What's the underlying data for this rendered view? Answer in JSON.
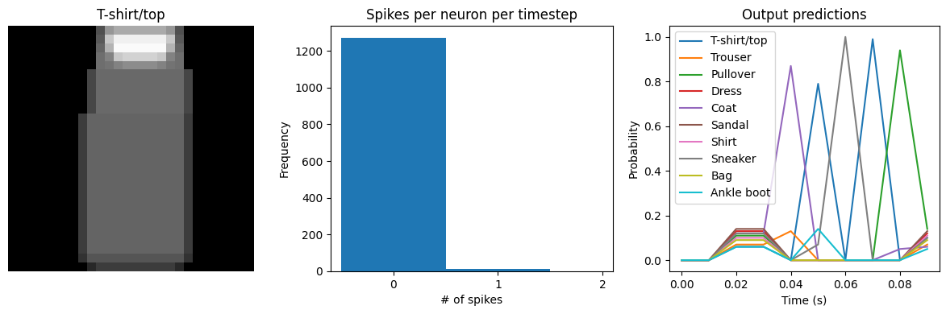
{
  "chart_data": [
    {
      "type": "image",
      "title": "T-shirt/top",
      "tick_labels": false,
      "clim": [
        0,
        255
      ],
      "cells": [
        [
          0,
          0,
          0,
          0,
          0,
          0,
          0,
          0,
          0,
          0,
          80,
          150,
          170,
          170,
          170,
          170,
          170,
          170,
          150,
          80,
          0,
          0,
          0,
          0,
          0,
          0,
          0,
          0
        ],
        [
          0,
          0,
          0,
          0,
          0,
          0,
          0,
          0,
          0,
          0,
          90,
          200,
          240,
          240,
          240,
          240,
          240,
          240,
          200,
          90,
          0,
          0,
          0,
          0,
          0,
          0,
          0,
          0
        ],
        [
          0,
          0,
          0,
          0,
          0,
          0,
          0,
          0,
          0,
          0,
          100,
          180,
          250,
          250,
          250,
          250,
          250,
          250,
          180,
          100,
          0,
          0,
          0,
          0,
          0,
          0,
          0,
          0
        ],
        [
          0,
          0,
          0,
          0,
          0,
          0,
          0,
          0,
          0,
          0,
          110,
          130,
          200,
          210,
          210,
          210,
          210,
          200,
          130,
          110,
          0,
          0,
          0,
          0,
          0,
          0,
          0,
          0
        ],
        [
          0,
          0,
          0,
          0,
          0,
          0,
          0,
          0,
          0,
          0,
          110,
          115,
          130,
          140,
          140,
          140,
          140,
          130,
          115,
          110,
          0,
          0,
          0,
          0,
          0,
          0,
          0,
          0
        ],
        [
          0,
          0,
          0,
          0,
          0,
          0,
          0,
          0,
          0,
          70,
          105,
          105,
          105,
          105,
          105,
          105,
          105,
          105,
          105,
          105,
          70,
          0,
          0,
          0,
          0,
          0,
          0,
          0
        ],
        [
          0,
          0,
          0,
          0,
          0,
          0,
          0,
          0,
          0,
          70,
          105,
          105,
          105,
          105,
          105,
          105,
          105,
          105,
          105,
          105,
          70,
          0,
          0,
          0,
          0,
          0,
          0,
          0
        ],
        [
          0,
          0,
          0,
          0,
          0,
          0,
          0,
          0,
          0,
          70,
          105,
          105,
          105,
          105,
          105,
          105,
          105,
          105,
          105,
          105,
          70,
          0,
          0,
          0,
          0,
          0,
          0,
          0
        ],
        [
          0,
          0,
          0,
          0,
          0,
          0,
          0,
          0,
          0,
          70,
          105,
          105,
          105,
          105,
          105,
          105,
          105,
          105,
          105,
          105,
          70,
          0,
          0,
          0,
          0,
          0,
          0,
          0
        ],
        [
          0,
          0,
          0,
          0,
          0,
          0,
          0,
          0,
          0,
          70,
          105,
          105,
          105,
          105,
          105,
          105,
          105,
          105,
          105,
          105,
          70,
          0,
          0,
          0,
          0,
          0,
          0,
          0
        ],
        [
          0,
          0,
          0,
          0,
          0,
          0,
          0,
          0,
          60,
          100,
          100,
          100,
          100,
          100,
          100,
          100,
          100,
          100,
          100,
          100,
          60,
          0,
          0,
          0,
          0,
          0,
          0,
          0
        ],
        [
          0,
          0,
          0,
          0,
          0,
          0,
          0,
          0,
          60,
          100,
          100,
          100,
          100,
          100,
          100,
          100,
          100,
          100,
          100,
          100,
          60,
          0,
          0,
          0,
          0,
          0,
          0,
          0
        ],
        [
          0,
          0,
          0,
          0,
          0,
          0,
          0,
          0,
          60,
          100,
          100,
          100,
          100,
          100,
          100,
          100,
          100,
          100,
          100,
          100,
          60,
          0,
          0,
          0,
          0,
          0,
          0,
          0
        ],
        [
          0,
          0,
          0,
          0,
          0,
          0,
          0,
          0,
          60,
          100,
          100,
          100,
          100,
          100,
          100,
          100,
          100,
          100,
          100,
          100,
          60,
          0,
          0,
          0,
          0,
          0,
          0,
          0
        ],
        [
          0,
          0,
          0,
          0,
          0,
          0,
          0,
          0,
          60,
          100,
          100,
          100,
          100,
          100,
          100,
          100,
          100,
          100,
          100,
          100,
          60,
          0,
          0,
          0,
          0,
          0,
          0,
          0
        ],
        [
          0,
          0,
          0,
          0,
          0,
          0,
          0,
          0,
          60,
          100,
          100,
          100,
          100,
          100,
          100,
          100,
          100,
          100,
          100,
          100,
          60,
          0,
          0,
          0,
          0,
          0,
          0,
          0
        ],
        [
          0,
          0,
          0,
          0,
          0,
          0,
          0,
          0,
          60,
          100,
          100,
          100,
          100,
          100,
          100,
          100,
          100,
          100,
          100,
          100,
          60,
          0,
          0,
          0,
          0,
          0,
          0,
          0
        ],
        [
          0,
          0,
          0,
          0,
          0,
          0,
          0,
          0,
          60,
          100,
          100,
          100,
          100,
          100,
          100,
          100,
          100,
          100,
          100,
          100,
          60,
          0,
          0,
          0,
          0,
          0,
          0,
          0
        ],
        [
          0,
          0,
          0,
          0,
          0,
          0,
          0,
          0,
          60,
          100,
          100,
          100,
          100,
          100,
          100,
          100,
          100,
          100,
          100,
          100,
          60,
          0,
          0,
          0,
          0,
          0,
          0,
          0
        ],
        [
          0,
          0,
          0,
          0,
          0,
          0,
          0,
          0,
          60,
          100,
          100,
          100,
          100,
          100,
          100,
          100,
          100,
          100,
          100,
          100,
          60,
          0,
          0,
          0,
          0,
          0,
          0,
          0
        ],
        [
          0,
          0,
          0,
          0,
          0,
          0,
          0,
          0,
          60,
          100,
          100,
          100,
          100,
          100,
          100,
          100,
          100,
          100,
          100,
          100,
          60,
          0,
          0,
          0,
          0,
          0,
          0,
          0
        ],
        [
          0,
          0,
          0,
          0,
          0,
          0,
          0,
          0,
          60,
          100,
          100,
          100,
          100,
          100,
          100,
          100,
          100,
          100,
          100,
          100,
          60,
          0,
          0,
          0,
          0,
          0,
          0,
          0
        ],
        [
          0,
          0,
          0,
          0,
          0,
          0,
          0,
          0,
          60,
          100,
          100,
          100,
          100,
          100,
          100,
          100,
          100,
          100,
          100,
          100,
          60,
          0,
          0,
          0,
          0,
          0,
          0,
          0
        ],
        [
          0,
          0,
          0,
          0,
          0,
          0,
          0,
          0,
          60,
          100,
          100,
          100,
          100,
          100,
          100,
          100,
          100,
          100,
          100,
          100,
          60,
          0,
          0,
          0,
          0,
          0,
          0,
          0
        ],
        [
          0,
          0,
          0,
          0,
          0,
          0,
          0,
          0,
          60,
          100,
          100,
          100,
          100,
          100,
          100,
          100,
          100,
          100,
          100,
          100,
          60,
          0,
          0,
          0,
          0,
          0,
          0,
          0
        ],
        [
          0,
          0,
          0,
          0,
          0,
          0,
          0,
          0,
          60,
          100,
          100,
          100,
          100,
          100,
          100,
          100,
          100,
          100,
          100,
          100,
          60,
          0,
          0,
          0,
          0,
          0,
          0,
          0
        ],
        [
          0,
          0,
          0,
          0,
          0,
          0,
          0,
          0,
          50,
          85,
          85,
          85,
          85,
          85,
          85,
          85,
          85,
          85,
          85,
          85,
          50,
          0,
          0,
          0,
          0,
          0,
          0,
          0
        ],
        [
          0,
          0,
          0,
          0,
          0,
          0,
          0,
          0,
          0,
          40,
          60,
          60,
          60,
          60,
          60,
          60,
          60,
          60,
          60,
          40,
          0,
          0,
          0,
          0,
          0,
          0,
          0,
          0
        ]
      ]
    },
    {
      "type": "histogram",
      "title": "Spikes per neuron per timestep",
      "x_label": "# of spikes",
      "y_label": "Frequency",
      "bins": [
        -0.5,
        0.5,
        1.5
      ],
      "counts": [
        1270,
        14
      ],
      "color": "#1f77b4",
      "xlim": [
        -0.6,
        2.1
      ],
      "xticks": [
        0,
        1,
        2
      ],
      "ylim": [
        0,
        1336
      ],
      "yticks": [
        0,
        200,
        400,
        600,
        800,
        1000,
        1200
      ]
    },
    {
      "type": "line",
      "title": "Output predictions",
      "x_label": "Time (s)",
      "y_label": "Probability",
      "x": [
        0.0,
        0.01,
        0.02,
        0.03,
        0.04,
        0.05,
        0.06,
        0.07,
        0.08,
        0.09
      ],
      "legend": "upper left",
      "xlim": [
        -0.0045,
        0.0945
      ],
      "xticks": [
        {
          "value": 0.0,
          "label": "0.00"
        },
        {
          "value": 0.02,
          "label": "0.02"
        },
        {
          "value": 0.04,
          "label": "0.04"
        },
        {
          "value": 0.06,
          "label": "0.06"
        },
        {
          "value": 0.08,
          "label": "0.08"
        }
      ],
      "ylim": [
        -0.05,
        1.05
      ],
      "yticks": [
        {
          "value": 0.0,
          "label": "0.0"
        },
        {
          "value": 0.2,
          "label": "0.2"
        },
        {
          "value": 0.4,
          "label": "0.4"
        },
        {
          "value": 0.6,
          "label": "0.6"
        },
        {
          "value": 0.8,
          "label": "0.8"
        },
        {
          "value": 1.0,
          "label": "1.0"
        }
      ],
      "series": [
        {
          "name": "T-shirt/top",
          "color": "#1f77b4",
          "values": [
            0,
            0,
            0.06,
            0.06,
            0,
            0.79,
            0,
            0.99,
            0,
            0.1
          ]
        },
        {
          "name": "Trouser",
          "color": "#ff7f0e",
          "values": [
            0,
            0,
            0.07,
            0.07,
            0.13,
            0,
            0,
            0,
            0,
            0.07
          ]
        },
        {
          "name": "Pullover",
          "color": "#2ca02c",
          "values": [
            0,
            0,
            0.11,
            0.11,
            0,
            0,
            0,
            0,
            0.94,
            0.14
          ]
        },
        {
          "name": "Dress",
          "color": "#d62728",
          "values": [
            0,
            0,
            0.13,
            0.13,
            0,
            0,
            0,
            0,
            0,
            0.12
          ]
        },
        {
          "name": "Coat",
          "color": "#9467bd",
          "values": [
            0,
            0,
            0.12,
            0.12,
            0.87,
            0,
            0,
            0,
            0.05,
            0.06
          ]
        },
        {
          "name": "Sandal",
          "color": "#8c564b",
          "values": [
            0,
            0,
            0.14,
            0.14,
            0,
            0,
            0,
            0,
            0,
            0.13
          ]
        },
        {
          "name": "Shirt",
          "color": "#e377c2",
          "values": [
            0,
            0,
            0.1,
            0.1,
            0,
            0,
            0,
            0,
            0,
            0.11
          ]
        },
        {
          "name": "Sneaker",
          "color": "#7f7f7f",
          "values": [
            0,
            0,
            0.12,
            0.12,
            0,
            0.07,
            1.0,
            0,
            0,
            0.1
          ]
        },
        {
          "name": "Bag",
          "color": "#bcbd22",
          "values": [
            0,
            0,
            0.09,
            0.09,
            0,
            0,
            0,
            0,
            0,
            0.09
          ]
        },
        {
          "name": "Ankle boot",
          "color": "#17becf",
          "values": [
            0,
            0,
            0.06,
            0.06,
            0,
            0.14,
            0,
            0,
            0,
            0.05
          ]
        }
      ]
    }
  ]
}
